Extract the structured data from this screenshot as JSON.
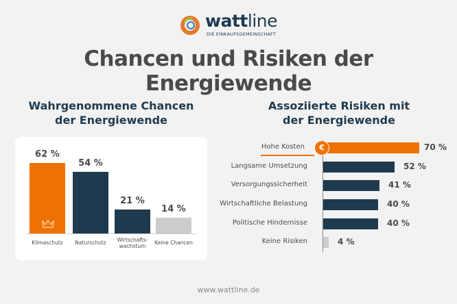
{
  "logo": {
    "name_bold": "watt",
    "name_light": "line",
    "tagline": "DIE EINKAUFSGEMEINSCHAFT"
  },
  "title": "Chancen und Risiken der Energiewende",
  "footer": "www.wattline.de",
  "colors": {
    "orange": "#ee7203",
    "navy": "#1f3a4f",
    "grey": "#cccccc",
    "text": "#4a4a4a"
  },
  "chart_data": [
    {
      "type": "bar",
      "title": "Wahrgenommene Chancen der Energiewende",
      "title_lines": [
        "Wahrgenommene Chancen",
        "der Energiewende"
      ],
      "categories": [
        "Klimaschutz",
        "Naturschutz",
        "Wirtschafts-\nwachstum",
        "Keine Chancen"
      ],
      "values": [
        62,
        54,
        21,
        14
      ],
      "value_labels": [
        "62 %",
        "54 %",
        "21 %",
        "14 %"
      ],
      "bar_colors": [
        "#ee7203",
        "#1f3a4f",
        "#1f3a4f",
        "#cccccc"
      ],
      "highlight_icon": "crown-icon",
      "ylim": [
        0,
        70
      ],
      "grid": false
    },
    {
      "type": "bar",
      "orientation": "horizontal",
      "title": "Assoziierte Risiken mit der Energiewende",
      "title_lines": [
        "Assoziierte Risiken mit",
        "der Energiewende"
      ],
      "categories": [
        "Hohe Kosten",
        "Langsame Umsetzung",
        "Versorgungssicherheit",
        "Wirtschaftliche Belastung",
        "Politische Hindernisse",
        "Keine Risiken"
      ],
      "values": [
        70,
        52,
        41,
        40,
        40,
        4
      ],
      "value_labels": [
        "70 %",
        "52 %",
        "41 %",
        "40 %",
        "40 %",
        "4 %"
      ],
      "bar_colors": [
        "#ee7203",
        "#1f3a4f",
        "#1f3a4f",
        "#1f3a4f",
        "#1f3a4f",
        "#cccccc"
      ],
      "highlight_icon": "euro-icon",
      "xlim": [
        0,
        80
      ],
      "grid": false
    }
  ]
}
